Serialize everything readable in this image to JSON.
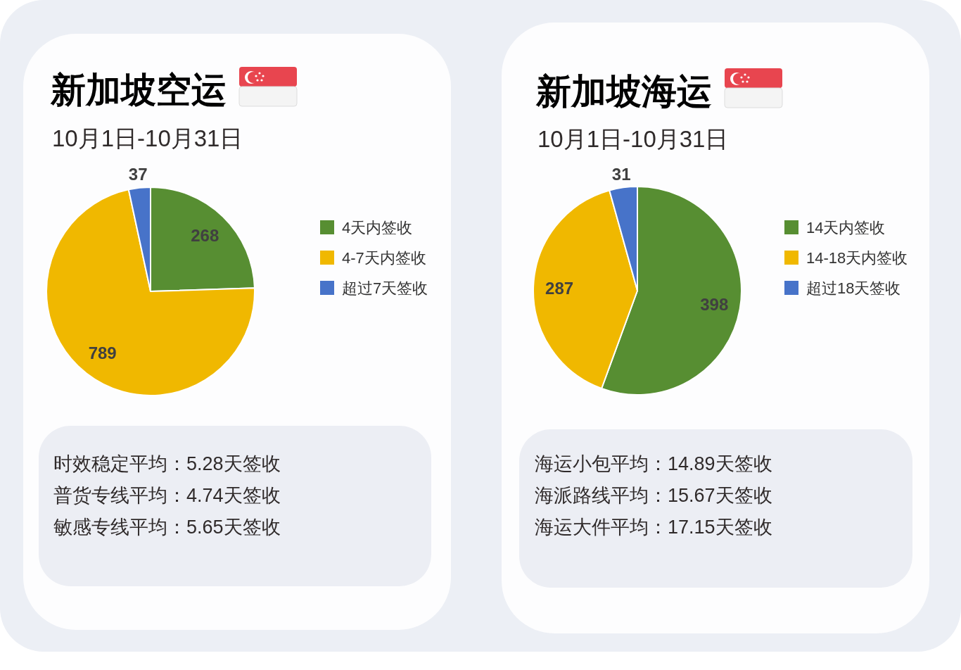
{
  "chart_data": [
    {
      "type": "pie",
      "title": "新加坡空运",
      "subtitle": "10月1日-10月31日",
      "categories": [
        "4天内签收",
        "4-7天内签收",
        "超过7天签收"
      ],
      "values": [
        268,
        789,
        37
      ],
      "colors": [
        "#578e32",
        "#f0b800",
        "#4773c9"
      ],
      "data_labels": true,
      "legend": "right",
      "annotations": [
        "时效稳定平均：5.28天签收",
        "普货专线平均：4.74天签收",
        "敏感专线平均：5.65天签收"
      ]
    },
    {
      "type": "pie",
      "title": "新加坡海运",
      "subtitle": "10月1日-10月31日",
      "categories": [
        "14天内签收",
        "14-18天内签收",
        "超过18天签收"
      ],
      "values": [
        398,
        287,
        31
      ],
      "colors": [
        "#578e32",
        "#f0b800",
        "#4773c9"
      ],
      "data_labels": true,
      "legend": "right",
      "annotations": [
        "海运小包平均：14.89天签收",
        "海派路线平均：15.67天签收",
        "海运大件平均：17.15天签收"
      ]
    }
  ]
}
